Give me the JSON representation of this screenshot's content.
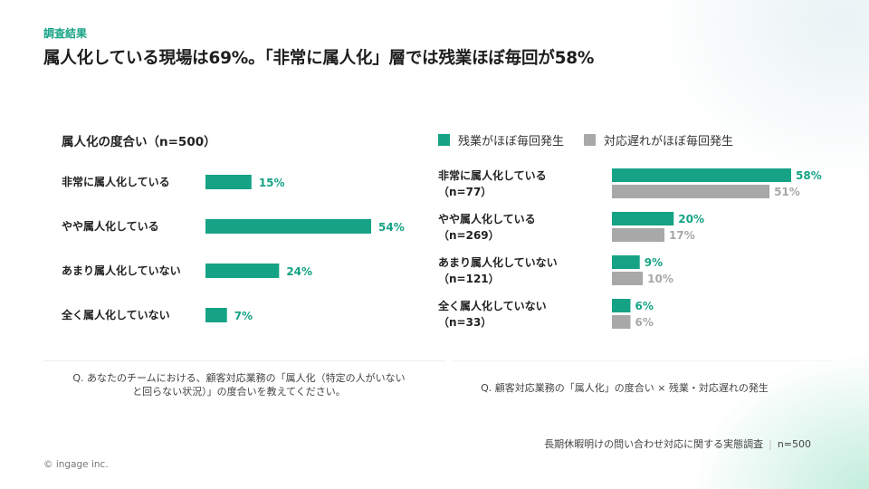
{
  "header": {
    "tag": "調査結果",
    "headline": "属人化している現場は69%。「非常に属人化」層では残業ほぼ毎回が58%"
  },
  "colors": {
    "teal": "#16a385",
    "gray": "#a8a8a8",
    "tag": "#16a385"
  },
  "chart_data": [
    {
      "type": "bar",
      "orientation": "horizontal",
      "title": "属人化の度合い（n=500）",
      "categories": [
        "非常に属人化している",
        "やや属人化している",
        "あまり属人化していない",
        "全く属人化していない"
      ],
      "values": [
        15,
        54,
        24,
        7
      ],
      "value_labels": [
        "15%",
        "54%",
        "24%",
        "7%"
      ],
      "unit": "%",
      "xlim": [
        0,
        54
      ],
      "grid": false,
      "question": "Q. あなたのチームにおける、顧客対応業務の「属人化（特定の人がいないと回らない状況）」の度合いを教えてください。"
    },
    {
      "type": "bar",
      "orientation": "horizontal",
      "title": "",
      "categories": [
        "非常に属人化している",
        "やや属人化している",
        "あまり属人化していない",
        "全く属人化していない"
      ],
      "category_n": [
        "（n=77）",
        "（n=269）",
        "（n=121）",
        "（n=33）"
      ],
      "series": [
        {
          "name": "残業がほぼ毎回発生",
          "values": [
            58,
            20,
            9,
            6
          ],
          "labels": [
            "58%",
            "20%",
            "9%",
            "6%"
          ]
        },
        {
          "name": "対応遅れがほぼ毎回発生",
          "values": [
            51,
            17,
            10,
            6
          ],
          "labels": [
            "51%",
            "17%",
            "10%",
            "6%"
          ]
        }
      ],
      "unit": "%",
      "xlim": [
        0,
        58
      ],
      "grid": false,
      "legend_position": "top",
      "question": "Q. 顧客対応業務の「属人化」の度合い × 残業・対応遅れの発生"
    }
  ],
  "footer": {
    "survey": "長期休暇明けの問い合わせ対応に関する実態調査",
    "n": "n=500",
    "copyright": "© ingage inc."
  }
}
